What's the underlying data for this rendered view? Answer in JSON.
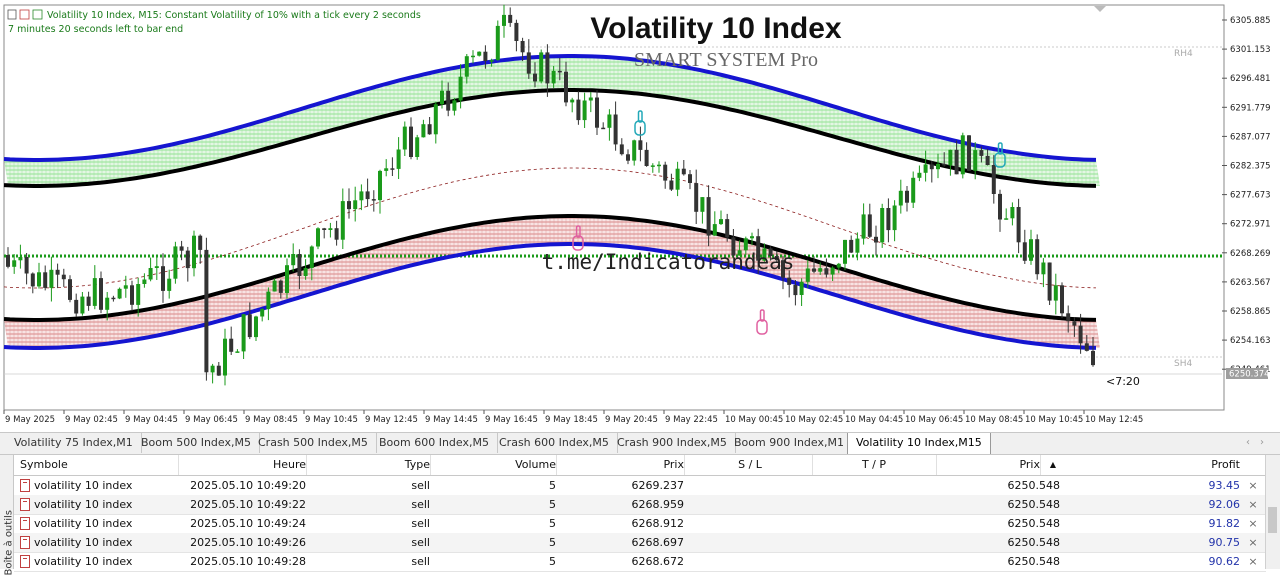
{
  "chart": {
    "info_line": "Volatility 10 Index, M15:  Constant Volatility of 10% with a tick every 2 seconds",
    "timer_line": "7 minutes 20 seconds left to bar end",
    "title": "Volatility 10 Index",
    "subtitle": "SMART SYSTEM Pro",
    "watermark": "t.me/Indicatorandeas",
    "rh_label": "RH4",
    "sh_label": "SH4",
    "bar_timer": "<7:20",
    "price_labels": [
      "6305.885",
      "6301.153",
      "6296.481",
      "6291.779",
      "6287.077",
      "6282.375",
      "6277.673",
      "6272.971",
      "6268.269",
      "6263.567",
      "6258.865",
      "6254.163",
      "6249.461"
    ],
    "current_price": "6250.374",
    "time_labels": [
      "9 May 2025",
      "9 May 02:45",
      "9 May 04:45",
      "9 May 06:45",
      "9 May 08:45",
      "9 May 10:45",
      "9 May 12:45",
      "9 May 14:45",
      "9 May 16:45",
      "9 May 18:45",
      "9 May 20:45",
      "9 May 22:45",
      "10 May 00:45",
      "10 May 02:45",
      "10 May 04:45",
      "10 May 06:45",
      "10 May 08:45",
      "10 May 10:45",
      "10 May 12:45"
    ],
    "colors": {
      "upper_band": "#1515d0",
      "mid_line": "#000000",
      "upper_fill": "#7ddc7d",
      "lower_fill": "#d06060",
      "bull": "#1a9a1a",
      "bear": "#333333",
      "level": "#1a9a1a",
      "title": "#111111",
      "subtitle": "#555555"
    }
  },
  "tabs": [
    {
      "label": "Volatility 75 Index,M1"
    },
    {
      "label": "Boom 500 Index,M5"
    },
    {
      "label": "Crash 500 Index,M5"
    },
    {
      "label": "Boom 600 Index,M5"
    },
    {
      "label": "Crash 600 Index,M5"
    },
    {
      "label": "Crash 900 Index,M5"
    },
    {
      "label": "Boom 900 Index,M1"
    },
    {
      "label": "Volatility 10 Index,M15",
      "active": true
    }
  ],
  "toolbox_label": "Boîte à outils",
  "table": {
    "headers": {
      "symbol": "Symbole",
      "time": "Heure",
      "type": "Type",
      "volume": "Volume",
      "price": "Prix",
      "sl": "S / L",
      "tp": "T / P",
      "cur_price": "Prix",
      "profit": "Profit"
    },
    "rows": [
      {
        "symbol": "volatility 10 index",
        "time": "2025.05.10 10:49:20",
        "type": "sell",
        "volume": "5",
        "price": "6269.237",
        "cur_price": "6250.548",
        "profit": "93.45"
      },
      {
        "symbol": "volatility 10 index",
        "time": "2025.05.10 10:49:22",
        "type": "sell",
        "volume": "5",
        "price": "6268.959",
        "cur_price": "6250.548",
        "profit": "92.06"
      },
      {
        "symbol": "volatility 10 index",
        "time": "2025.05.10 10:49:24",
        "type": "sell",
        "volume": "5",
        "price": "6268.912",
        "cur_price": "6250.548",
        "profit": "91.82"
      },
      {
        "symbol": "volatility 10 index",
        "time": "2025.05.10 10:49:26",
        "type": "sell",
        "volume": "5",
        "price": "6268.697",
        "cur_price": "6250.548",
        "profit": "90.75"
      },
      {
        "symbol": "volatility 10 index",
        "time": "2025.05.10 10:49:28",
        "type": "sell",
        "volume": "5",
        "price": "6268.672",
        "cur_price": "6250.548",
        "profit": "90.62"
      }
    ],
    "close_glyph": "×",
    "sort_glyph": "▲"
  }
}
